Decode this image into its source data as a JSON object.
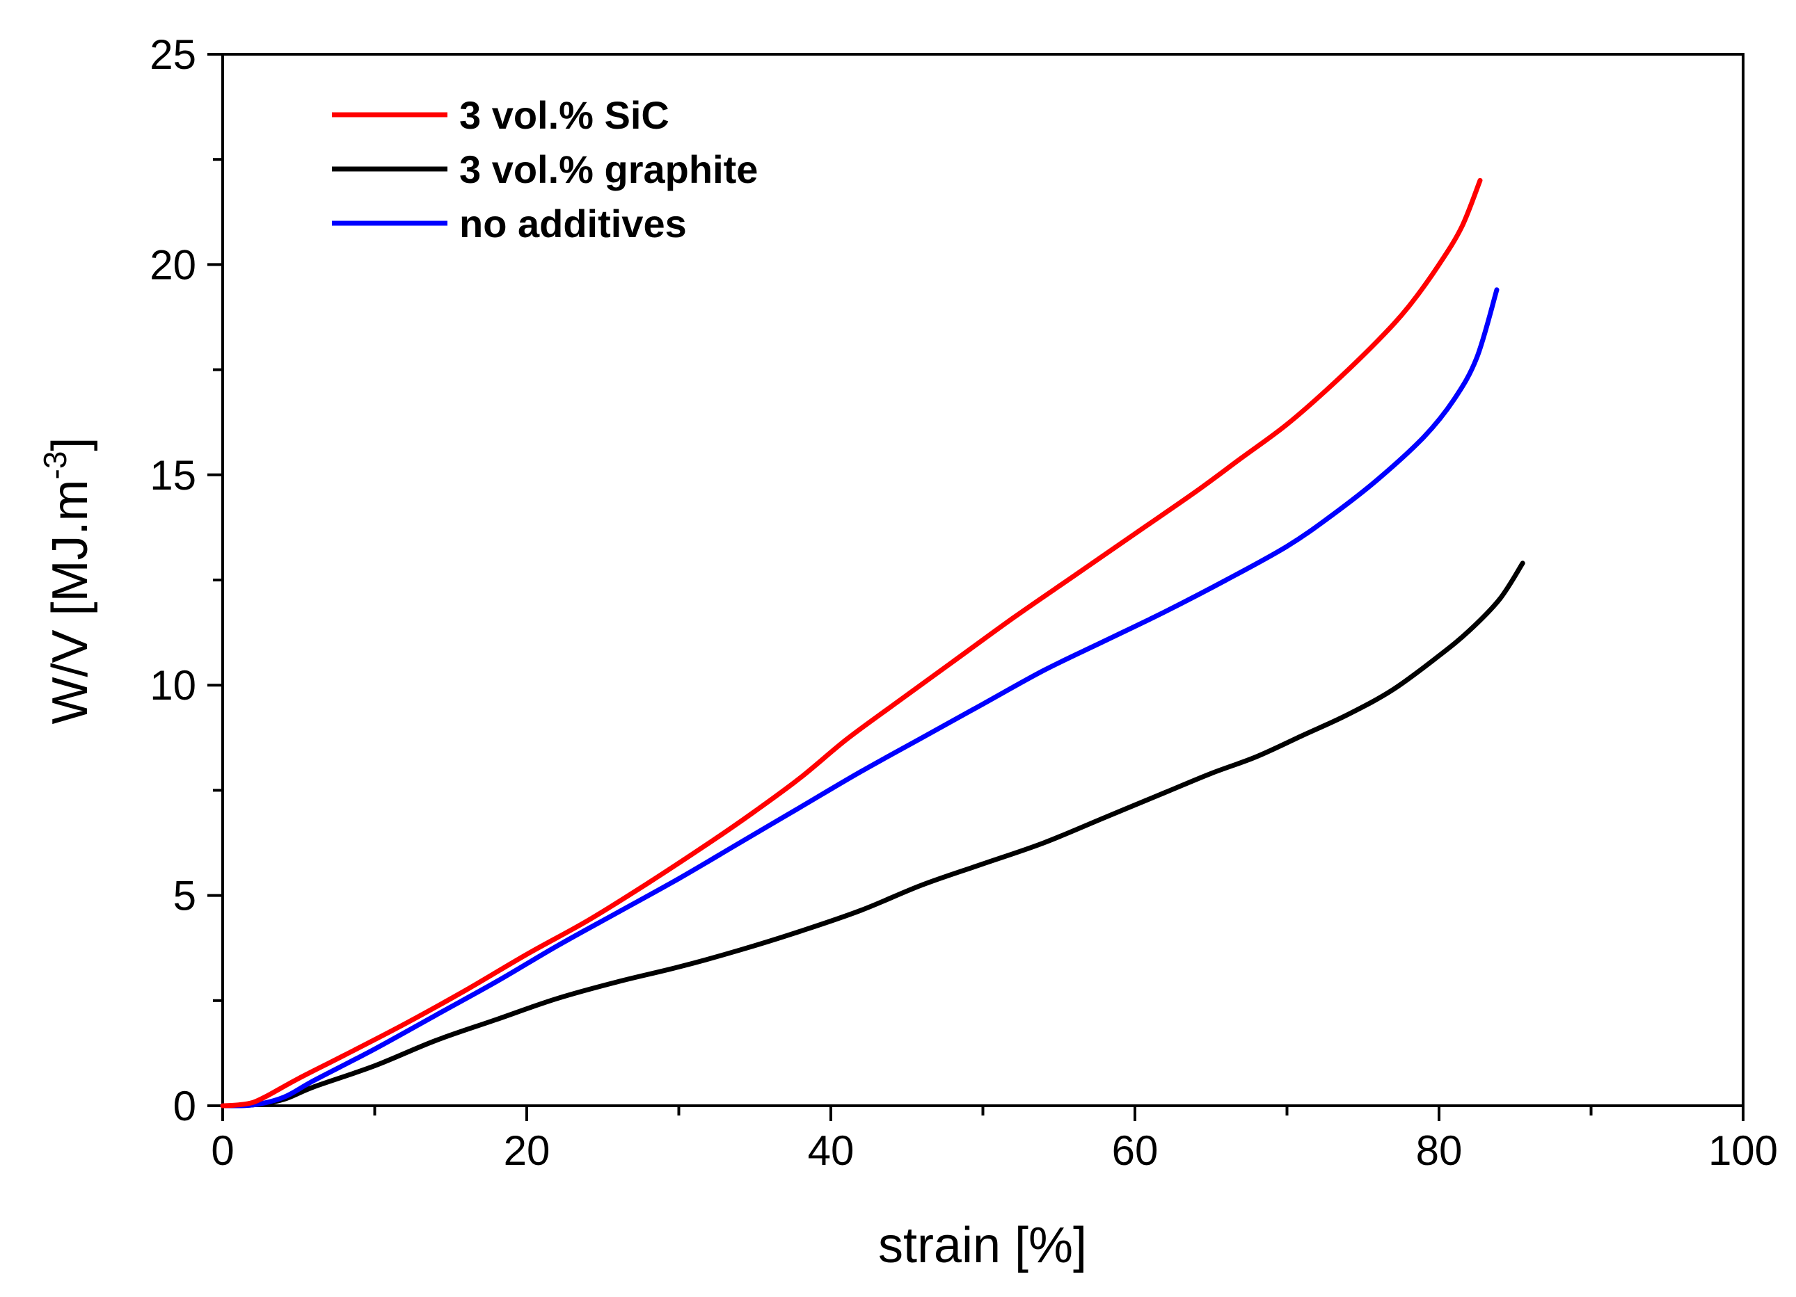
{
  "chart_data": {
    "type": "line",
    "title": "",
    "xlabel": "strain [%]",
    "ylabel": "W/V [MJ.m",
    "ylabel_superscript": "-3",
    "ylabel_suffix": "]",
    "xlim": [
      0,
      100
    ],
    "ylim": [
      0,
      25
    ],
    "x_ticks": [
      0,
      20,
      40,
      60,
      80,
      100
    ],
    "x_tick_labels": [
      "0",
      "20",
      "40",
      "60",
      "80",
      "100"
    ],
    "y_ticks": [
      0,
      5,
      10,
      15,
      20,
      25
    ],
    "y_tick_labels": [
      "0",
      "5",
      "10",
      "15",
      "20",
      "25"
    ],
    "grid": false,
    "legend_position": "top-left",
    "series": [
      {
        "name": "3 vol.% SiC",
        "color": "#ff0000",
        "points": [
          [
            0,
            0
          ],
          [
            1,
            0.02
          ],
          [
            2,
            0.08
          ],
          [
            3,
            0.25
          ],
          [
            5,
            0.65
          ],
          [
            8,
            1.2
          ],
          [
            12,
            1.95
          ],
          [
            16,
            2.75
          ],
          [
            20,
            3.6
          ],
          [
            24,
            4.4
          ],
          [
            28,
            5.3
          ],
          [
            32,
            6.25
          ],
          [
            35,
            7.0
          ],
          [
            38,
            7.8
          ],
          [
            41,
            8.7
          ],
          [
            44,
            9.5
          ],
          [
            48,
            10.55
          ],
          [
            52,
            11.6
          ],
          [
            56,
            12.6
          ],
          [
            60,
            13.6
          ],
          [
            64,
            14.6
          ],
          [
            67,
            15.4
          ],
          [
            70,
            16.2
          ],
          [
            73,
            17.15
          ],
          [
            76,
            18.2
          ],
          [
            78,
            19.0
          ],
          [
            80,
            20.0
          ],
          [
            81.5,
            20.9
          ],
          [
            82.7,
            22.0
          ]
        ]
      },
      {
        "name": "3 vol.% graphite",
        "color": "#000000",
        "points": [
          [
            0,
            0
          ],
          [
            2,
            0.02
          ],
          [
            4,
            0.15
          ],
          [
            6,
            0.45
          ],
          [
            10,
            0.95
          ],
          [
            14,
            1.55
          ],
          [
            18,
            2.05
          ],
          [
            22,
            2.55
          ],
          [
            26,
            2.95
          ],
          [
            30,
            3.3
          ],
          [
            34,
            3.7
          ],
          [
            38,
            4.15
          ],
          [
            42,
            4.65
          ],
          [
            46,
            5.25
          ],
          [
            50,
            5.75
          ],
          [
            54,
            6.25
          ],
          [
            58,
            6.85
          ],
          [
            62,
            7.45
          ],
          [
            65,
            7.9
          ],
          [
            68,
            8.3
          ],
          [
            71,
            8.8
          ],
          [
            74,
            9.3
          ],
          [
            77,
            9.9
          ],
          [
            80,
            10.7
          ],
          [
            82,
            11.3
          ],
          [
            84,
            12.05
          ],
          [
            85.5,
            12.9
          ]
        ]
      },
      {
        "name": "no additives",
        "color": "#0000ff",
        "points": [
          [
            0,
            0
          ],
          [
            2,
            0.02
          ],
          [
            4,
            0.2
          ],
          [
            6,
            0.6
          ],
          [
            10,
            1.35
          ],
          [
            14,
            2.15
          ],
          [
            18,
            2.95
          ],
          [
            22,
            3.8
          ],
          [
            26,
            4.6
          ],
          [
            30,
            5.4
          ],
          [
            34,
            6.25
          ],
          [
            38,
            7.1
          ],
          [
            42,
            7.95
          ],
          [
            46,
            8.75
          ],
          [
            50,
            9.55
          ],
          [
            54,
            10.35
          ],
          [
            58,
            11.05
          ],
          [
            62,
            11.75
          ],
          [
            66,
            12.5
          ],
          [
            70,
            13.3
          ],
          [
            73,
            14.05
          ],
          [
            76,
            14.9
          ],
          [
            79,
            15.9
          ],
          [
            81,
            16.8
          ],
          [
            82.5,
            17.8
          ],
          [
            83.8,
            19.4
          ]
        ]
      }
    ]
  }
}
